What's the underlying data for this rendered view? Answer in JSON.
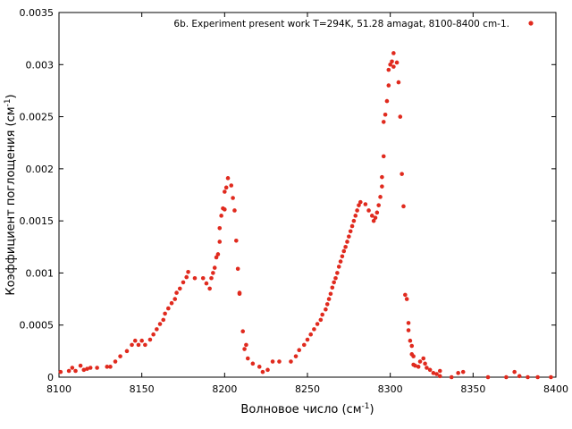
{
  "chart_data": {
    "type": "scatter",
    "xlabel": {
      "text": "Волновое число (см",
      "sup": "-1",
      "close": ")"
    },
    "ylabel": {
      "text": "Коэффициент поглощения (см",
      "sup": "-1",
      "close": ")"
    },
    "xlim": [
      8100,
      8400
    ],
    "ylim": [
      0,
      0.0035
    ],
    "xticks": [
      8100,
      8150,
      8200,
      8250,
      8300,
      8350,
      8400
    ],
    "xtick_labels": [
      "8100",
      "8150",
      "8200",
      "8250",
      "8300",
      "8350",
      "8400"
    ],
    "yticks": [
      0,
      0.0005,
      0.001,
      0.0015,
      0.002,
      0.0025,
      0.003,
      0.0035
    ],
    "ytick_labels": [
      "0",
      "0.0005",
      "0.001",
      "0.0015",
      "0.002",
      "0.0025",
      "0.003",
      "0.0035"
    ],
    "grid": false,
    "legend_position": "top-right",
    "series": [
      {
        "name": "6b. Experiment present work T=294K, 51.28 amagat, 8100-8400 cm-1.",
        "color": "#e02a1e",
        "points": [
          [
            8101,
            5e-05
          ],
          [
            8106,
            6e-05
          ],
          [
            8108,
            9e-05
          ],
          [
            8110,
            6e-05
          ],
          [
            8113,
            0.00011
          ],
          [
            8115,
            7e-05
          ],
          [
            8117,
            8e-05
          ],
          [
            8119,
            9e-05
          ],
          [
            8123,
            9e-05
          ],
          [
            8129,
            0.0001
          ],
          [
            8131,
            0.0001
          ],
          [
            8134,
            0.00015
          ],
          [
            8137,
            0.0002
          ],
          [
            8141,
            0.00025
          ],
          [
            8144,
            0.00031
          ],
          [
            8146,
            0.00035
          ],
          [
            8148,
            0.00031
          ],
          [
            8150,
            0.00035
          ],
          [
            8152,
            0.00031
          ],
          [
            8155,
            0.00036
          ],
          [
            8157,
            0.00041
          ],
          [
            8159,
            0.00046
          ],
          [
            8161,
            0.00051
          ],
          [
            8163,
            0.00055
          ],
          [
            8164,
            0.00061
          ],
          [
            8166,
            0.00066
          ],
          [
            8168,
            0.00071
          ],
          [
            8170,
            0.00075
          ],
          [
            8171,
            0.00081
          ],
          [
            8173,
            0.00085
          ],
          [
            8175,
            0.00091
          ],
          [
            8177,
            0.00096
          ],
          [
            8178,
            0.00101
          ],
          [
            8182,
            0.00095
          ],
          [
            8187,
            0.00095
          ],
          [
            8189,
            0.0009
          ],
          [
            8191,
            0.00085
          ],
          [
            8192,
            0.00095
          ],
          [
            8193,
            0.001
          ],
          [
            8194,
            0.00105
          ],
          [
            8195,
            0.00115
          ],
          [
            8196,
            0.00118
          ],
          [
            8197,
            0.0013
          ],
          [
            8197,
            0.00143
          ],
          [
            8198,
            0.00155
          ],
          [
            8199,
            0.00162
          ],
          [
            8200,
            0.00161
          ],
          [
            8200,
            0.00178
          ],
          [
            8201,
            0.00182
          ],
          [
            8202,
            0.00191
          ],
          [
            8204,
            0.00184
          ],
          [
            8205,
            0.00172
          ],
          [
            8206,
            0.0016
          ],
          [
            8207,
            0.00131
          ],
          [
            8208,
            0.00104
          ],
          [
            8209,
            0.00081
          ],
          [
            8209,
            0.0008
          ],
          [
            8211,
            0.00044
          ],
          [
            8212,
            0.00027
          ],
          [
            8213,
            0.00031
          ],
          [
            8214,
            0.00018
          ],
          [
            8217,
            0.00013
          ],
          [
            8221,
            0.0001
          ],
          [
            8223,
            5e-05
          ],
          [
            8226,
            7e-05
          ],
          [
            8229,
            0.00015
          ],
          [
            8233,
            0.00015
          ],
          [
            8240,
            0.00015
          ],
          [
            8243,
            0.0002
          ],
          [
            8245,
            0.00026
          ],
          [
            8248,
            0.00031
          ],
          [
            8250,
            0.00036
          ],
          [
            8252,
            0.00041
          ],
          [
            8254,
            0.00046
          ],
          [
            8256,
            0.00051
          ],
          [
            8258,
            0.00055
          ],
          [
            8259,
            0.0006
          ],
          [
            8261,
            0.00065
          ],
          [
            8262,
            0.0007
          ],
          [
            8263,
            0.00075
          ],
          [
            8264,
            0.0008
          ],
          [
            8265,
            0.00086
          ],
          [
            8266,
            0.00091
          ],
          [
            8267,
            0.00095
          ],
          [
            8268,
            0.001
          ],
          [
            8269,
            0.00106
          ],
          [
            8270,
            0.00111
          ],
          [
            8271,
            0.00116
          ],
          [
            8272,
            0.00121
          ],
          [
            8273,
            0.00125
          ],
          [
            8274,
            0.0013
          ],
          [
            8275,
            0.00135
          ],
          [
            8276,
            0.0014
          ],
          [
            8277,
            0.00145
          ],
          [
            8278,
            0.0015
          ],
          [
            8279,
            0.00155
          ],
          [
            8280,
            0.0016
          ],
          [
            8281,
            0.00165
          ],
          [
            8282,
            0.00168
          ],
          [
            8285,
            0.00166
          ],
          [
            8287,
            0.0016
          ],
          [
            8289,
            0.00155
          ],
          [
            8290,
            0.0015
          ],
          [
            8291,
            0.00153
          ],
          [
            8292,
            0.00158
          ],
          [
            8293,
            0.00165
          ],
          [
            8294,
            0.00173
          ],
          [
            8295,
            0.00183
          ],
          [
            8295,
            0.00192
          ],
          [
            8296,
            0.00212
          ],
          [
            8296,
            0.00245
          ],
          [
            8297,
            0.00252
          ],
          [
            8298,
            0.00265
          ],
          [
            8299,
            0.0028
          ],
          [
            8299,
            0.00295
          ],
          [
            8300,
            0.003
          ],
          [
            8301,
            0.00303
          ],
          [
            8302,
            0.00298
          ],
          [
            8302,
            0.00311
          ],
          [
            8304,
            0.00302
          ],
          [
            8305,
            0.00283
          ],
          [
            8306,
            0.0025
          ],
          [
            8307,
            0.00195
          ],
          [
            8308,
            0.00164
          ],
          [
            8309,
            0.00079
          ],
          [
            8310,
            0.00075
          ],
          [
            8311,
            0.00052
          ],
          [
            8311,
            0.00045
          ],
          [
            8312,
            0.00035
          ],
          [
            8313,
            0.0003
          ],
          [
            8313,
            0.00022
          ],
          [
            8314,
            0.0002
          ],
          [
            8314,
            0.00012
          ],
          [
            8315,
            0.00011
          ],
          [
            8317,
            0.0001
          ],
          [
            8318,
            0.00015
          ],
          [
            8320,
            0.00018
          ],
          [
            8321,
            0.00013
          ],
          [
            8322,
            9e-05
          ],
          [
            8324,
            7e-05
          ],
          [
            8326,
            4e-05
          ],
          [
            8328,
            3e-05
          ],
          [
            8330,
            6e-05
          ],
          [
            8330,
            1e-05
          ],
          [
            8337,
            0.0
          ],
          [
            8341,
            4e-05
          ],
          [
            8344,
            5e-05
          ],
          [
            8359,
            0.0
          ],
          [
            8370,
            0.0
          ],
          [
            8375,
            5e-05
          ],
          [
            8378,
            1e-05
          ],
          [
            8383,
            0.0
          ],
          [
            8389,
            0.0
          ],
          [
            8397,
            0.0
          ]
        ]
      }
    ]
  }
}
